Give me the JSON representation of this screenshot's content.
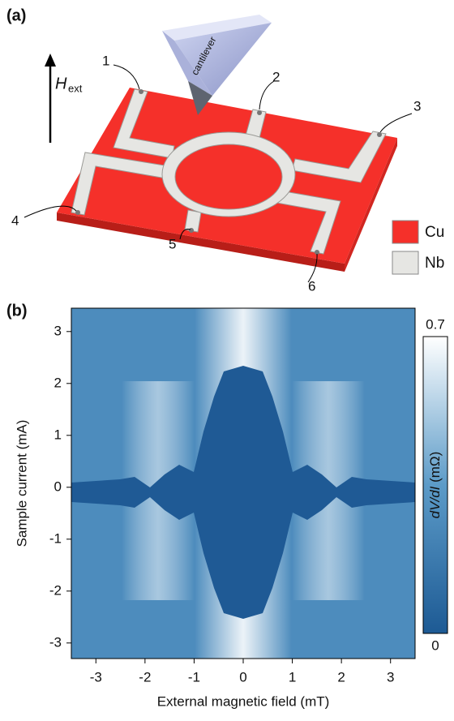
{
  "panel_a": {
    "label": "(a)",
    "cantilever": "cantilever",
    "field_symbol": "H",
    "field_subscript": "ext",
    "contacts": [
      "1",
      "2",
      "3",
      "4",
      "5",
      "6"
    ],
    "legend": [
      {
        "name": "Cu",
        "color": "#f5302a"
      },
      {
        "name": "Nb",
        "color": "#e6e6e3"
      }
    ]
  },
  "chart_data": {
    "type": "heatmap",
    "panel_label": "(b)",
    "x_label": "External magnetic field (mT)",
    "y_label": "Sample current (mA)",
    "xlim": [
      -3.5,
      3.5
    ],
    "ylim": [
      -3.3,
      3.45
    ],
    "xticks": [
      -3,
      -2,
      -1,
      0,
      1,
      2,
      3
    ],
    "yticks": [
      -3,
      -2,
      -1,
      0,
      1,
      2,
      3
    ],
    "colorbar": {
      "lim": [
        0,
        0.7
      ],
      "ticks": [
        0,
        0.7
      ],
      "quantity": "dV/dI",
      "unit": "(mΩ)",
      "colors": [
        "#1d5a94",
        "#ffffff"
      ]
    }
  }
}
